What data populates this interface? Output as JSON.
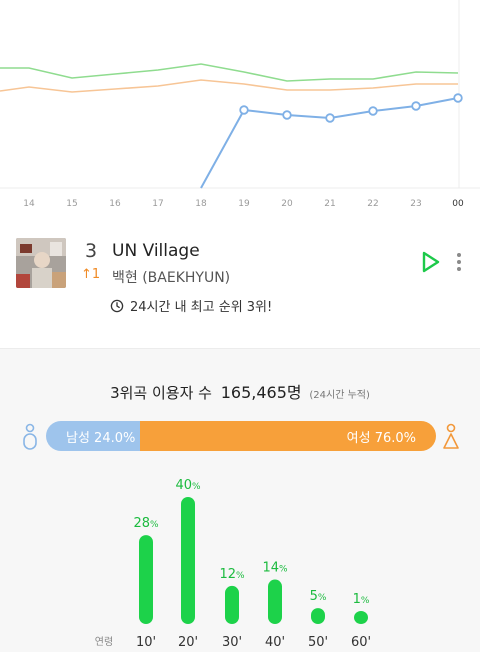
{
  "rank_chart": {
    "x_labels": [
      "14",
      "15",
      "16",
      "17",
      "18",
      "19",
      "20",
      "21",
      "22",
      "23",
      "00"
    ],
    "colors": {
      "green": "#8fdc8f",
      "orange": "#f7c596",
      "blue": "#7fb0e6",
      "grid": "#ececec"
    }
  },
  "song": {
    "rank": "3",
    "rank_change": "↑1",
    "title": "UN Village",
    "artist": "백현 (BAEKHYUN)",
    "best_rank_note": "24시간 내 최고 순위 3위!"
  },
  "stats": {
    "users_label": "3위곡 이용자 수",
    "users_count": "165,465명",
    "users_note": "(24시간 누적)",
    "male_label": "남성 24.0%",
    "female_label": "여성 76.0%",
    "male_share": 24.0,
    "female_share": 76.0,
    "colors": {
      "male": "#9ec4ec",
      "female": "#f7a03a",
      "bar": "#1dd24a",
      "value": "#1cbb3f"
    }
  },
  "chart_data": {
    "type": "bar",
    "xlabel": "연령",
    "categories": [
      "10'",
      "20'",
      "30'",
      "40'",
      "50'",
      "60'"
    ],
    "values": [
      28,
      40,
      12,
      14,
      5,
      1
    ],
    "value_labels": [
      "28",
      "40",
      "12",
      "14",
      "5",
      "1"
    ],
    "unit": "%"
  }
}
